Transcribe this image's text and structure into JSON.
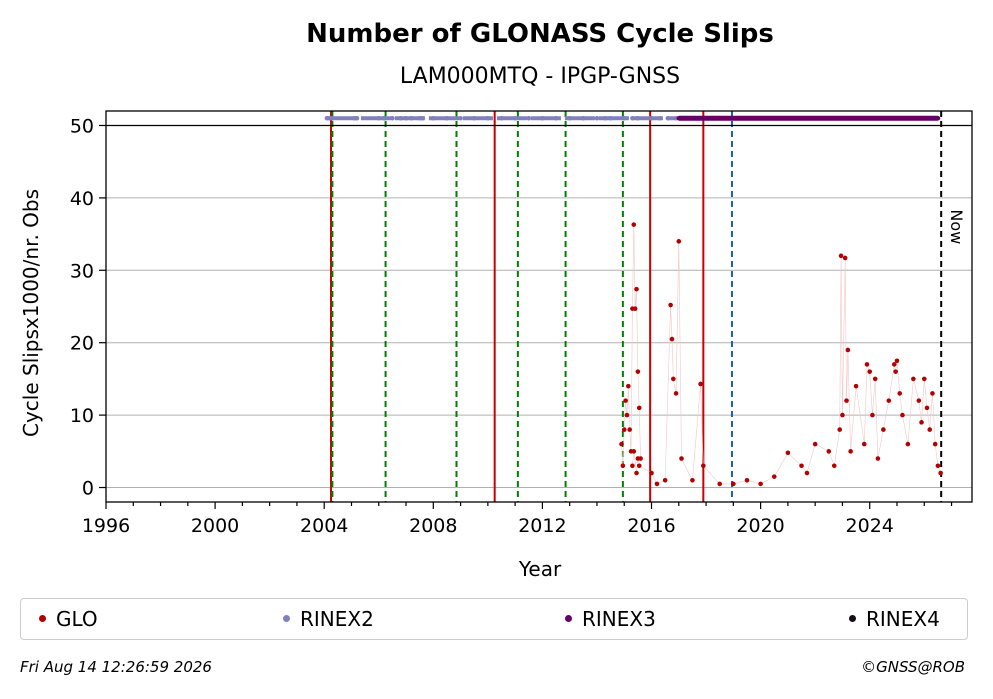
{
  "chart_data": {
    "type": "scatter",
    "title": "Number of GLONASS Cycle Slips",
    "subtitle": "LAM000MTQ - IPGP-GNSS",
    "xlabel": "Year",
    "ylabel": "Cycle Slipsx1000/nr. Obs",
    "xlim": [
      1996,
      2027.75
    ],
    "ylim": [
      -2,
      52
    ],
    "xticks": [
      1996,
      2000,
      2004,
      2008,
      2012,
      2016,
      2020,
      2024
    ],
    "xtick_labels": [
      "1996",
      "2000",
      "2004",
      "2008",
      "2012",
      "2016",
      "2020",
      "2024"
    ],
    "yticks": [
      0,
      10,
      20,
      30,
      40,
      50
    ],
    "ytick_labels": [
      "0",
      "10",
      "20",
      "30",
      "40",
      "50"
    ],
    "grid": "horizontal",
    "series": [
      {
        "name": "GLO",
        "color": "#b30000",
        "x": [
          2014.9,
          2014.95,
          2015.0,
          2015.05,
          2015.1,
          2015.15,
          2015.2,
          2015.25,
          2015.3,
          2015.35,
          2015.4,
          2015.45,
          2015.5,
          2015.55,
          2015.6,
          2015.3,
          2015.35,
          2015.45,
          2015.5,
          2015.55,
          2016.0,
          2016.2,
          2016.5,
          2016.7,
          2016.75,
          2016.8,
          2016.9,
          2017.0,
          2017.1,
          2017.5,
          2017.8,
          2017.9,
          2018.5,
          2019.0,
          2019.5,
          2020.0,
          2020.5,
          2021.0,
          2021.5,
          2021.7,
          2022.0,
          2022.5,
          2022.7,
          2022.9,
          2022.95,
          2023.0,
          2023.1,
          2023.15,
          2023.2,
          2023.3,
          2023.5,
          2023.8,
          2023.9,
          2024.0,
          2024.1,
          2024.2,
          2024.3,
          2024.5,
          2024.7,
          2024.9,
          2024.95,
          2025.0,
          2025.1,
          2025.2,
          2025.4,
          2025.6,
          2025.8,
          2025.9,
          2026.0,
          2026.1,
          2026.2,
          2026.3,
          2026.4,
          2026.5,
          2026.6
        ],
        "y": [
          6,
          3,
          8,
          12,
          10,
          14,
          8,
          5,
          24.7,
          36.3,
          24.7,
          27.4,
          16,
          11,
          4,
          3,
          5,
          2,
          4,
          3,
          2,
          0.5,
          1,
          25.2,
          20.5,
          15,
          13,
          34,
          4,
          1,
          14.3,
          3,
          0.5,
          0.5,
          1,
          0.5,
          1.5,
          4.8,
          3,
          2,
          6,
          5,
          3,
          8,
          32,
          10,
          31.7,
          12,
          19,
          5,
          14,
          6,
          17,
          16,
          10,
          15,
          4,
          8,
          12,
          17,
          16,
          17.5,
          13,
          10,
          6,
          15,
          12,
          9,
          15,
          11,
          8,
          13,
          6,
          3,
          2
        ]
      },
      {
        "name": "RINEX2",
        "color": "#8080c0",
        "x": [
          2004.1,
          2004.2,
          2004.3,
          2005.1,
          2005.2,
          2006.0,
          2006.2,
          2006.5,
          2006.8,
          2007.0,
          2007.2,
          2007.5,
          2007.6,
          2008.0,
          2008.5,
          2009.0,
          2009.5,
          2010.0,
          2010.5,
          2011.0,
          2011.5,
          2012.0,
          2012.5,
          2013.0,
          2013.5,
          2014.0,
          2014.3,
          2014.5,
          2015.0,
          2015.3,
          2015.5,
          2016.0,
          2016.3,
          2016.6,
          2016.9
        ],
        "y": [
          51,
          51,
          51,
          51,
          51,
          51,
          51,
          51,
          51,
          51,
          51,
          51,
          51,
          51,
          51,
          51,
          51,
          51,
          51,
          51,
          51,
          51,
          51,
          51,
          51,
          51,
          51,
          51,
          51,
          51,
          51,
          51,
          51,
          51,
          51
        ]
      },
      {
        "name": "RINEX3",
        "color": "#660066",
        "x": [
          2017.0,
          2017.5,
          2018.0,
          2018.5,
          2019.0,
          2019.5,
          2020.0,
          2020.5,
          2021.0,
          2021.5,
          2022.0,
          2022.5,
          2023.0,
          2023.5,
          2024.0,
          2024.5,
          2025.0,
          2025.5,
          2026.0,
          2026.5
        ],
        "y": [
          51,
          51,
          51,
          51,
          51,
          51,
          51,
          51,
          51,
          51,
          51,
          51,
          51,
          51,
          51,
          51,
          51,
          51,
          51,
          51
        ]
      },
      {
        "name": "RINEX4",
        "color": "#1a0a1a",
        "x": [],
        "y": []
      }
    ],
    "vlines": [
      {
        "x": 2004.25,
        "color": "#cc0000",
        "style": "solid"
      },
      {
        "x": 2004.3,
        "color": "#008000",
        "style": "dashed"
      },
      {
        "x": 2006.25,
        "color": "#008000",
        "style": "dashed"
      },
      {
        "x": 2008.85,
        "color": "#008000",
        "style": "dashed"
      },
      {
        "x": 2010.25,
        "color": "#cc0000",
        "style": "solid"
      },
      {
        "x": 2011.1,
        "color": "#008000",
        "style": "dashed"
      },
      {
        "x": 2012.85,
        "color": "#008000",
        "style": "dashed"
      },
      {
        "x": 2014.95,
        "color": "#008000",
        "style": "dashed"
      },
      {
        "x": 2015.95,
        "color": "#cc0000",
        "style": "solid"
      },
      {
        "x": 2017.9,
        "color": "#cc0000",
        "style": "solid"
      },
      {
        "x": 2018.95,
        "color": "#1f5fa8",
        "style": "dashed"
      },
      {
        "x": 2026.62,
        "color": "#000000",
        "style": "dashed"
      }
    ],
    "hline": {
      "y": 50,
      "color": "#000000"
    },
    "now_label": "Now",
    "legend_placement": "bottom"
  },
  "footer": {
    "timestamp": "Fri Aug 14 12:26:59 2026",
    "credit": "©GNSS@ROB"
  }
}
